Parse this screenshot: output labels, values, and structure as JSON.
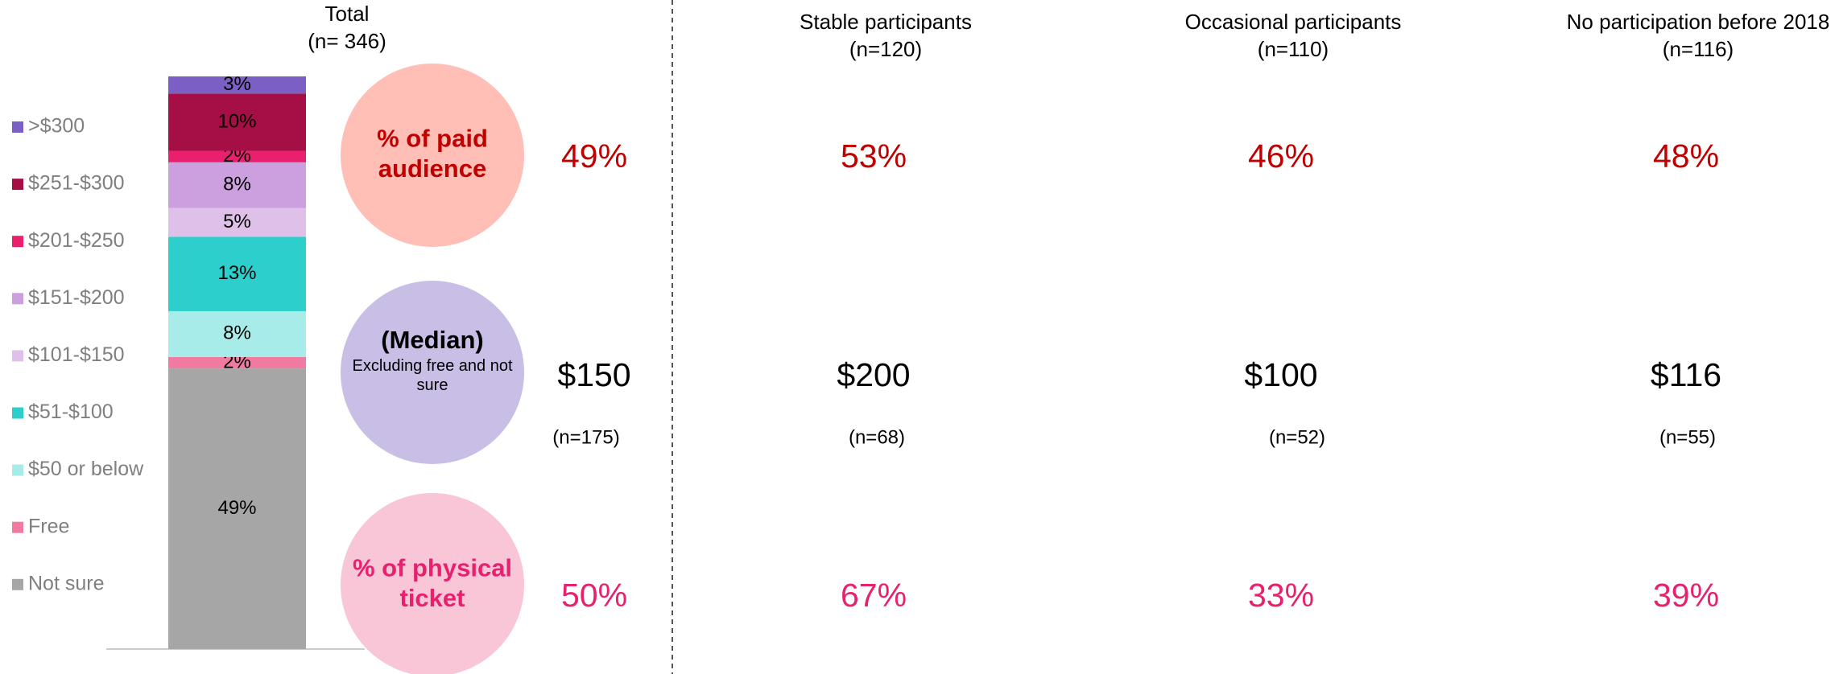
{
  "chart_data": {
    "type": "stacked_bar",
    "title": "Total",
    "subtitle": "(n= 346)",
    "categories": [
      "Total"
    ],
    "series": [
      {
        "name": "Not sure",
        "color": "#a6a6a6",
        "values": [
          49
        ],
        "value_labels": [
          "49%"
        ]
      },
      {
        "name": "Free",
        "color": "#f07aa0",
        "values": [
          2
        ],
        "value_labels": [
          "2%"
        ]
      },
      {
        "name": "$50 or below",
        "color": "#a8ecea",
        "values": [
          8
        ],
        "value_labels": [
          "8%"
        ]
      },
      {
        "name": "$51-$100",
        "color": "#2ccfcb",
        "values": [
          13
        ],
        "value_labels": [
          "13%"
        ]
      },
      {
        "name": "$101-$150",
        "color": "#dfc0e8",
        "values": [
          5
        ],
        "value_labels": [
          "5%"
        ]
      },
      {
        "name": "$151-$200",
        "color": "#cc9fdf",
        "values": [
          8
        ],
        "value_labels": [
          "8%"
        ]
      },
      {
        "name": "$201-$250",
        "color": "#e8206e",
        "values": [
          2
        ],
        "value_labels": [
          "2%"
        ]
      },
      {
        "name": "$251-$300",
        "color": "#a50f45",
        "values": [
          10
        ],
        "value_labels": [
          "10%"
        ]
      },
      {
        "name": ">$300",
        "color": "#7b5fc4",
        "values": [
          3
        ],
        "value_labels": [
          "3%"
        ]
      }
    ],
    "ylim": [
      0,
      100
    ]
  },
  "rows": {
    "paid": {
      "label": [
        "% of paid",
        "audience"
      ],
      "color": "#c00000",
      "circle": "#ffbfb7"
    },
    "median": {
      "label": [
        "(Median)"
      ],
      "note": [
        "Excluding free and not",
        "sure"
      ],
      "color": "#000000",
      "circle": "#c9bfe6"
    },
    "physical": {
      "label": [
        "% of physical",
        "ticket"
      ],
      "color": "#e8206e",
      "circle": "#f9c6d8"
    }
  },
  "columns": [
    {
      "paid": "49%",
      "median": "$150",
      "median_n": "(n=175)",
      "physical": "50%"
    },
    {
      "title": "Stable participants",
      "n": "(n=120)",
      "paid": "53%",
      "median": "$200",
      "median_n": "(n=68)",
      "physical": "67%"
    },
    {
      "title": "Occasional participants",
      "n": "(n=110)",
      "paid": "46%",
      "median": "$100",
      "median_n": "(n=52)",
      "physical": "33%"
    },
    {
      "title": "No participation before 2018",
      "n": "(n=116)",
      "paid": "48%",
      "median": "$116",
      "median_n": "(n=55)",
      "physical": "39%"
    }
  ]
}
